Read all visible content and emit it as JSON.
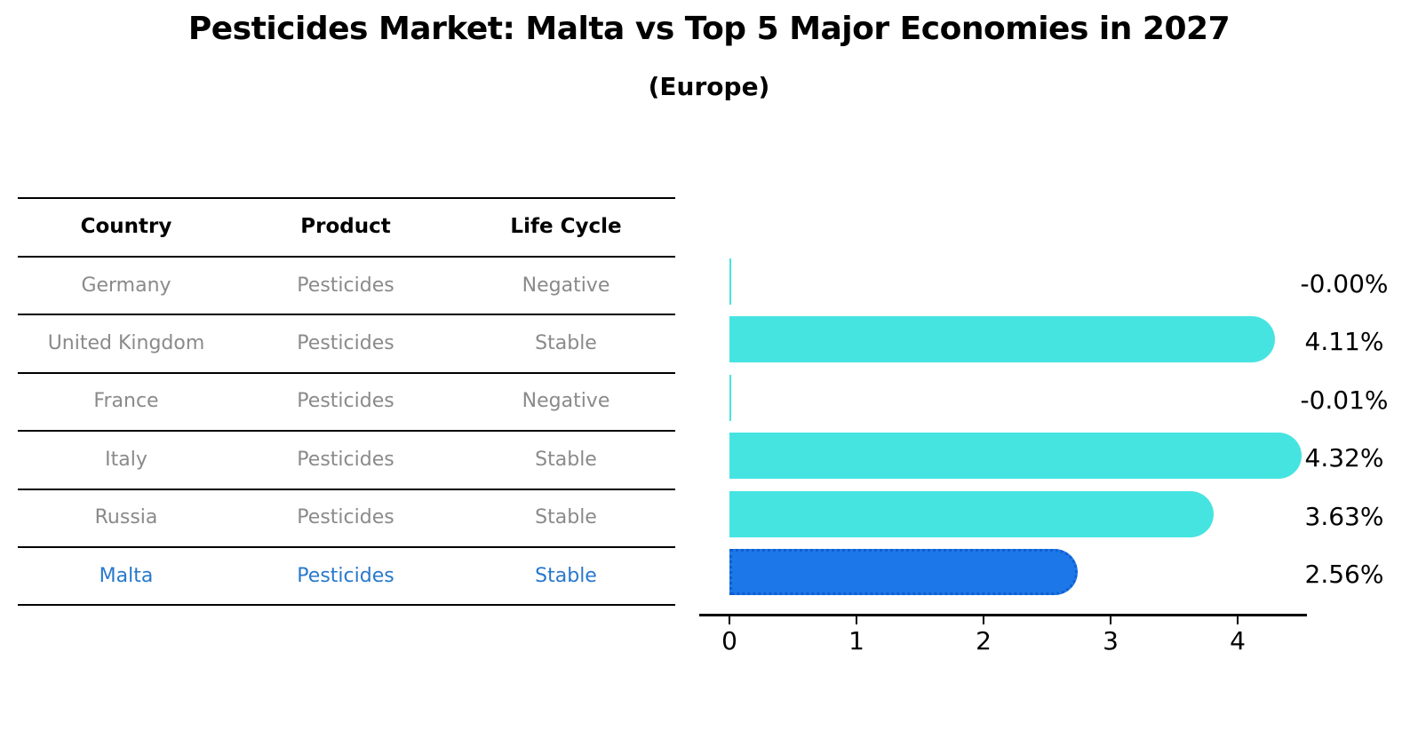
{
  "table": {
    "headers": [
      "Country",
      "Product",
      "Life Cycle"
    ],
    "rows": [
      {
        "country": "Germany",
        "product": "Pesticides",
        "life_cycle": "Negative",
        "highlight": false
      },
      {
        "country": "United Kingdom",
        "product": "Pesticides",
        "life_cycle": "Stable",
        "highlight": false
      },
      {
        "country": "France",
        "product": "Pesticides",
        "life_cycle": "Negative",
        "highlight": false
      },
      {
        "country": "Italy",
        "product": "Pesticides",
        "life_cycle": "Stable",
        "highlight": false
      },
      {
        "country": "Russia",
        "product": "Pesticides",
        "life_cycle": "Stable",
        "highlight": false
      },
      {
        "country": "Malta",
        "product": "Pesticides",
        "life_cycle": "Stable",
        "highlight": true
      }
    ]
  },
  "chart_data": {
    "type": "bar",
    "orientation": "horizontal",
    "title": "Pesticides Market: Malta vs Top 5 Major Economies in 2027",
    "subtitle": "(Europe)",
    "categories": [
      "Germany",
      "United Kingdom",
      "France",
      "Italy",
      "Russia",
      "Malta"
    ],
    "values": [
      -0.0,
      4.11,
      -0.01,
      4.32,
      3.63,
      2.56
    ],
    "value_labels": [
      "-0.00%",
      "4.11%",
      "-0.01%",
      "4.32%",
      "3.63%",
      "2.56%"
    ],
    "xlabel": "",
    "ylabel": "",
    "xticks": [
      0,
      1,
      2,
      3,
      4
    ],
    "xlim": [
      -0.25,
      4.55
    ],
    "grid": false,
    "legend": false,
    "bar_color": "#46E4E1",
    "highlight_index": 5,
    "highlight_fill": "#1C77E8",
    "highlight_border": "#0F5FD0",
    "axis_color": "#000000",
    "value_label_color": "#000000",
    "table_text_color": "#8a8a8a",
    "highlight_text_color": "#2878CC"
  }
}
